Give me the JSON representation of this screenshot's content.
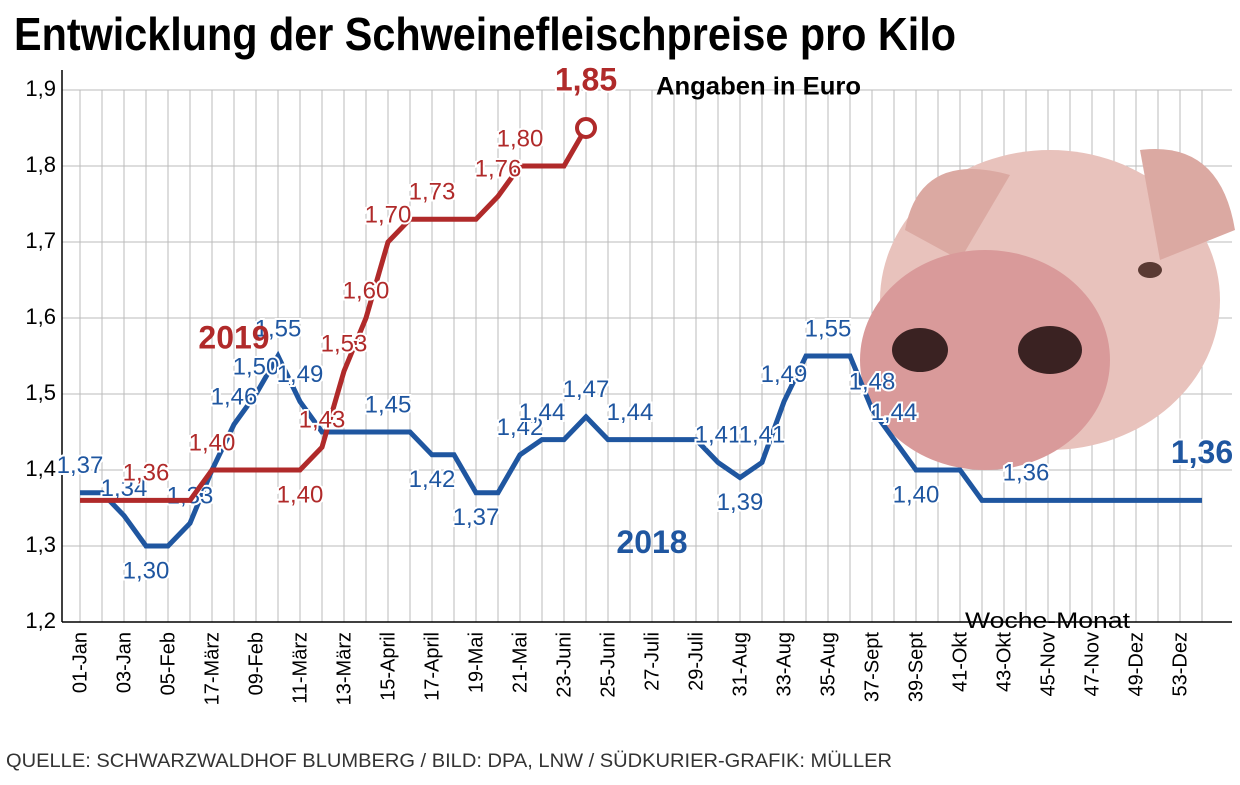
{
  "chart_data": {
    "type": "line",
    "title": "Entwicklung der Schweinefleischpreise pro Kilo",
    "subtitle": "Angaben in Euro",
    "x_label": "Woche-Monat",
    "source": "QUELLE: SCHWARZWALDHOF BLUMBERG / BILD: DPA, LNW / SÜDKURIER-GRAFIK: MÜLLER",
    "categories": [
      "01-Jan",
      null,
      "03-Jan",
      null,
      "05-Feb",
      null,
      "17-März",
      null,
      "09-Feb",
      null,
      "11-März",
      null,
      "13-März",
      null,
      "15-April",
      null,
      "17-April",
      null,
      "19-Mai",
      null,
      "21-Mai",
      null,
      "23-Juni",
      null,
      "25-Juni",
      null,
      "27-Juli",
      null,
      "29-Juli",
      null,
      "31-Aug",
      null,
      "33-Aug",
      null,
      "35-Aug",
      null,
      "37-Sept",
      null,
      "39-Sept",
      null,
      "41-Okt",
      null,
      "43-Okt",
      null,
      "45-Nov",
      null,
      "47-Nov",
      null,
      "49-Dez",
      null,
      "53-Dez",
      null
    ],
    "series": [
      {
        "name": "2018",
        "color": "#1f56a0",
        "values": [
          1.37,
          1.37,
          1.34,
          1.3,
          1.3,
          1.33,
          1.4,
          1.46,
          1.5,
          1.55,
          1.49,
          1.45,
          1.45,
          1.45,
          1.45,
          1.45,
          1.42,
          1.42,
          1.37,
          1.37,
          1.42,
          1.44,
          1.44,
          1.47,
          1.44,
          1.44,
          1.44,
          1.44,
          1.44,
          1.41,
          1.39,
          1.41,
          1.49,
          1.55,
          1.55,
          1.55,
          1.48,
          1.44,
          1.4,
          1.4,
          1.4,
          1.36,
          1.36,
          1.36,
          1.36,
          1.36,
          1.36,
          1.36,
          1.36,
          1.36,
          1.36,
          1.36
        ],
        "value_labels": [
          "1,37",
          null,
          "1,34",
          "1,30",
          null,
          "1,33",
          null,
          "1,46",
          "1,50",
          "1,55",
          "1,49",
          null,
          null,
          null,
          "1,45",
          null,
          "1,42",
          null,
          "1,37",
          null,
          "1,42",
          "1,44",
          null,
          "1,47",
          null,
          "1,44",
          null,
          null,
          null,
          "1,41",
          "1,39",
          "1,41",
          "1,49",
          null,
          "1,55",
          null,
          "1,48",
          "1,44",
          "1,40",
          null,
          null,
          null,
          null,
          "1,36",
          null,
          null,
          null,
          null,
          null,
          null,
          null,
          "1,36"
        ]
      },
      {
        "name": "2019",
        "color": "#b02a2a",
        "values": [
          1.36,
          1.36,
          1.36,
          1.36,
          1.36,
          1.36,
          1.4,
          1.4,
          1.4,
          1.4,
          1.4,
          1.43,
          1.53,
          1.6,
          1.7,
          1.73,
          1.73,
          1.73,
          1.73,
          1.76,
          1.8,
          1.8,
          1.8,
          1.85,
          null,
          null,
          null,
          null,
          null,
          null,
          null,
          null,
          null,
          null,
          null,
          null,
          null,
          null,
          null,
          null,
          null,
          null,
          null,
          null,
          null,
          null,
          null,
          null,
          null,
          null,
          null,
          null
        ],
        "value_labels": [
          null,
          null,
          null,
          "1,36",
          null,
          null,
          "1,40",
          null,
          null,
          null,
          "1,40",
          "1,43",
          "1,53",
          "1,60",
          "1,70",
          null,
          "1,73",
          null,
          null,
          "1,76",
          "1,80",
          null,
          null,
          "1,85",
          null,
          null,
          null,
          null,
          null,
          null,
          null,
          null,
          null,
          null,
          null,
          null,
          null,
          null,
          null,
          null,
          null,
          null,
          null,
          null,
          null,
          null,
          null,
          null,
          null,
          null,
          null,
          null
        ]
      }
    ],
    "ylim": [
      1.2,
      1.9
    ],
    "yticks": [
      {
        "value": 1.2,
        "label": "1,2"
      },
      {
        "value": 1.3,
        "label": "1,3"
      },
      {
        "value": 1.4,
        "label": "1,4"
      },
      {
        "value": 1.5,
        "label": "1,5"
      },
      {
        "value": 1.6,
        "label": "1,6"
      },
      {
        "value": 1.7,
        "label": "1,7"
      },
      {
        "value": 1.8,
        "label": "1,8"
      },
      {
        "value": 1.9,
        "label": "1,9"
      }
    ],
    "grid": true
  }
}
